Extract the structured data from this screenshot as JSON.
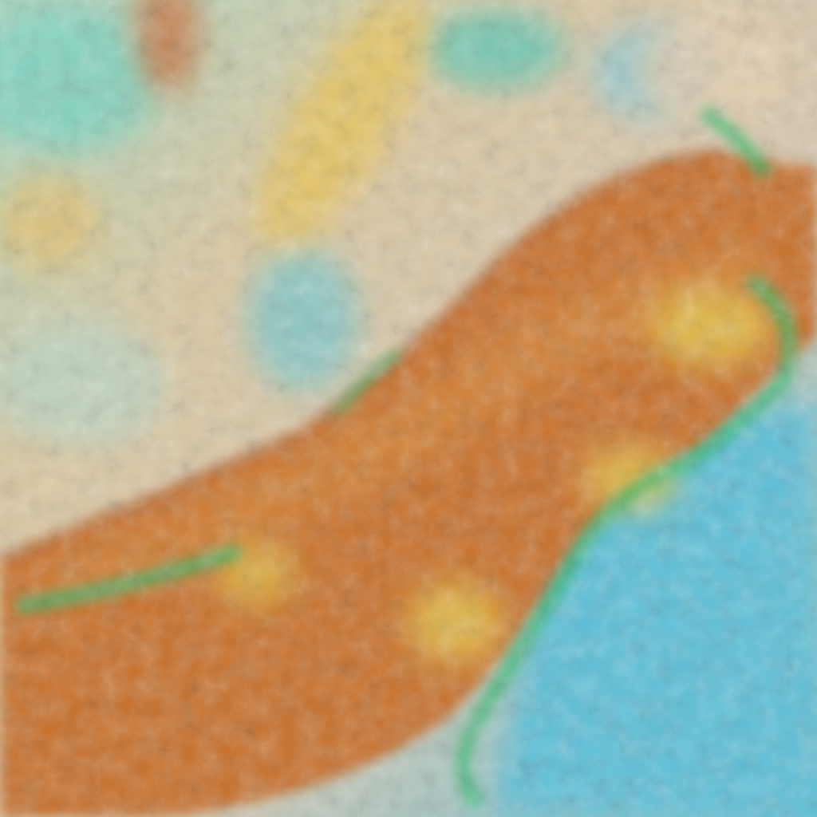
{
  "image": {
    "kind": "false-color satellite cloud imagery",
    "colors": {
      "high_cloud_band": "#c8702a",
      "band_highlight": "#d98a3a",
      "low_cloud_tan": "#d8c3a0",
      "cyan_texture": "#5fd0c8",
      "yellow_cloud": "#e6c24a",
      "green_edges": "#2fb86a",
      "open_water": "#5cc0d8"
    }
  }
}
